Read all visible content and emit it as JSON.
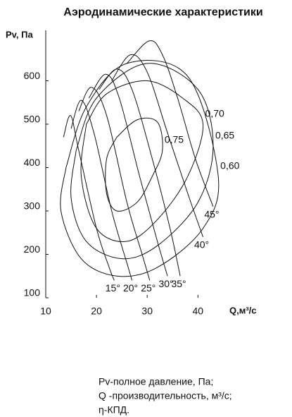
{
  "chart_data": {
    "type": "line",
    "title": "Аэродинамические характеристики",
    "y_label": "Pv, Па",
    "x_label": "Q,м³/с",
    "xlim": [
      10,
      48
    ],
    "ylim": [
      100,
      700
    ],
    "xticks": [
      10,
      20,
      30,
      40
    ],
    "yticks": [
      100,
      200,
      300,
      400,
      500,
      600
    ],
    "color": "#111111",
    "series": [
      {
        "name": "15°",
        "x": [
          13.5,
          14.9,
          16.5,
          20,
          22.5,
          23.5
        ],
        "values": [
          470,
          520,
          440,
          260,
          170,
          140
        ]
      },
      {
        "name": "20°",
        "x": [
          15,
          17,
          19.5,
          23,
          26,
          27
        ],
        "values": [
          490,
          555,
          480,
          300,
          180,
          140
        ]
      },
      {
        "name": "25°",
        "x": [
          16.5,
          19,
          22,
          26,
          29,
          30.5
        ],
        "values": [
          530,
          585,
          520,
          320,
          200,
          140
        ]
      },
      {
        "name": "30°",
        "x": [
          18.5,
          21.8,
          24.5,
          28.5,
          32,
          34
        ],
        "values": [
          560,
          615,
          560,
          380,
          230,
          150
        ]
      },
      {
        "name": "35°",
        "x": [
          20.5,
          24,
          27,
          31,
          34.5,
          36.5
        ],
        "values": [
          580,
          627,
          580,
          420,
          260,
          150
        ]
      },
      {
        "name": "40°",
        "x": [
          23,
          26.7,
          30,
          34,
          38,
          41
        ],
        "values": [
          600,
          660,
          620,
          480,
          340,
          240
        ]
      },
      {
        "name": "45°",
        "x": [
          26,
          30.4,
          33,
          36,
          39.5,
          43
        ],
        "values": [
          640,
          692,
          660,
          560,
          420,
          310
        ]
      },
      {
        "name": "0,75",
        "x": [
          24,
          28,
          32,
          33,
          31,
          28,
          24,
          22,
          22,
          24
        ],
        "values": [
          470,
          510,
          505,
          440,
          380,
          320,
          300,
          340,
          420,
          470
        ]
      },
      {
        "name": "0,70",
        "x": [
          18,
          22,
          30,
          37,
          41,
          38,
          32,
          26,
          20,
          17,
          18
        ],
        "values": [
          500,
          570,
          600,
          560,
          500,
          380,
          280,
          230,
          260,
          380,
          500
        ]
      },
      {
        "name": "0,65",
        "x": [
          16,
          20,
          30,
          40,
          43,
          40,
          32,
          25,
          18,
          15,
          16
        ],
        "values": [
          440,
          560,
          640,
          580,
          450,
          320,
          220,
          190,
          230,
          330,
          440
        ]
      },
      {
        "name": "0,60",
        "x": [
          14,
          18,
          26,
          38,
          44,
          41,
          32,
          24,
          17,
          13,
          14
        ],
        "values": [
          400,
          540,
          640,
          610,
          380,
          260,
          170,
          150,
          190,
          300,
          400
        ]
      }
    ],
    "notes": [
      "Pv-полное давление, Па;",
      "Q -производительность, м³/с;",
      "η-КПД."
    ]
  }
}
